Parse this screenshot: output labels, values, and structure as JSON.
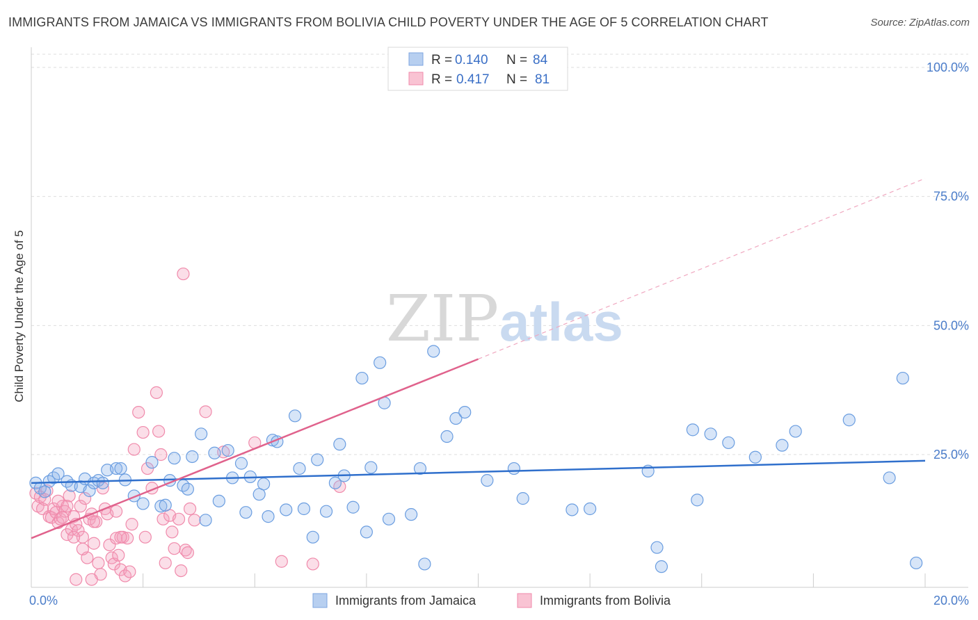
{
  "title": "IMMIGRANTS FROM JAMAICA VS IMMIGRANTS FROM BOLIVIA CHILD POVERTY UNDER THE AGE OF 5 CORRELATION CHART",
  "source": "Source: ZipAtlas.com",
  "watermark": {
    "zip": "ZIP",
    "atlas": "atlas"
  },
  "colors": {
    "jamaica": "#6a9de0",
    "jamaica_line": "#2f6fcc",
    "bolivia": "#f08aab",
    "bolivia_line": "#e0628c",
    "tick": "#4a7cc9"
  },
  "legend_top": {
    "rows": [
      {
        "r_label": "R =",
        "r_value": "0.140",
        "n_label": "N =",
        "n_value": "84"
      },
      {
        "r_label": "R =",
        "r_value": "0.417",
        "n_label": "N =",
        "n_value": "81"
      }
    ]
  },
  "chart_data": {
    "type": "scatter",
    "xlabel": "",
    "ylabel": "Child Poverty Under the Age of 5",
    "xlim": [
      0,
      20
    ],
    "ylim": [
      0,
      105
    ],
    "x_ticks": [
      {
        "value": 0,
        "label": "0.0%"
      },
      {
        "value": 20,
        "label": "20.0%"
      }
    ],
    "y_ticks": [
      {
        "value": 25,
        "label": "25.0%"
      },
      {
        "value": 50,
        "label": "50.0%"
      },
      {
        "value": 75,
        "label": "75.0%"
      },
      {
        "value": 100,
        "label": "100.0%"
      }
    ],
    "grid": true,
    "legend_position": "bottom",
    "series": [
      {
        "name": "Immigrants from Jamaica",
        "trend": {
          "x": [
            0,
            20
          ],
          "y": [
            19.5,
            23.8
          ],
          "dashed_extension": false
        },
        "points": [
          [
            0.1,
            19.5
          ],
          [
            0.2,
            18.5
          ],
          [
            0.3,
            17.8
          ],
          [
            0.4,
            19.8
          ],
          [
            0.5,
            20.5
          ],
          [
            0.6,
            21.3
          ],
          [
            0.8,
            19.8
          ],
          [
            0.9,
            19.0
          ],
          [
            1.1,
            18.8
          ],
          [
            1.2,
            20.3
          ],
          [
            1.3,
            18.0
          ],
          [
            1.4,
            19.5
          ],
          [
            1.5,
            20.0
          ],
          [
            1.6,
            19.5
          ],
          [
            1.7,
            22.0
          ],
          [
            1.9,
            22.3
          ],
          [
            2.0,
            22.3
          ],
          [
            2.1,
            20.1
          ],
          [
            2.3,
            17.0
          ],
          [
            2.5,
            15.5
          ],
          [
            2.7,
            23.5
          ],
          [
            2.9,
            15.0
          ],
          [
            3.0,
            15.2
          ],
          [
            3.1,
            20.0
          ],
          [
            3.2,
            24.3
          ],
          [
            3.4,
            19.0
          ],
          [
            3.5,
            18.3
          ],
          [
            3.6,
            24.6
          ],
          [
            3.8,
            29.0
          ],
          [
            3.9,
            12.3
          ],
          [
            4.1,
            25.3
          ],
          [
            4.2,
            16.0
          ],
          [
            4.4,
            25.8
          ],
          [
            4.5,
            20.5
          ],
          [
            4.7,
            23.3
          ],
          [
            4.8,
            13.8
          ],
          [
            4.9,
            20.7
          ],
          [
            5.1,
            17.3
          ],
          [
            5.2,
            19.3
          ],
          [
            5.3,
            13.0
          ],
          [
            5.4,
            27.8
          ],
          [
            5.5,
            27.5
          ],
          [
            5.7,
            14.3
          ],
          [
            5.9,
            32.5
          ],
          [
            6.0,
            22.3
          ],
          [
            6.1,
            14.5
          ],
          [
            6.3,
            9.0
          ],
          [
            6.4,
            24.0
          ],
          [
            6.6,
            14.0
          ],
          [
            6.8,
            19.5
          ],
          [
            6.9,
            27.0
          ],
          [
            7.0,
            20.9
          ],
          [
            7.2,
            14.8
          ],
          [
            7.4,
            39.8
          ],
          [
            7.5,
            10.0
          ],
          [
            7.6,
            22.5
          ],
          [
            7.8,
            42.8
          ],
          [
            7.9,
            35.0
          ],
          [
            8.0,
            12.5
          ],
          [
            8.5,
            13.4
          ],
          [
            8.7,
            22.3
          ],
          [
            8.8,
            3.8
          ],
          [
            9.0,
            45.0
          ],
          [
            9.3,
            28.5
          ],
          [
            9.5,
            32.0
          ],
          [
            9.7,
            33.2
          ],
          [
            10.2,
            20.0
          ],
          [
            10.8,
            22.3
          ],
          [
            11.0,
            16.5
          ],
          [
            12.1,
            14.3
          ],
          [
            12.5,
            14.5
          ],
          [
            13.8,
            21.8
          ],
          [
            14.0,
            7.0
          ],
          [
            14.1,
            3.3
          ],
          [
            14.8,
            29.8
          ],
          [
            14.9,
            16.2
          ],
          [
            15.2,
            29.0
          ],
          [
            15.6,
            27.3
          ],
          [
            16.2,
            24.5
          ],
          [
            16.8,
            26.8
          ],
          [
            17.1,
            29.5
          ],
          [
            18.3,
            31.7
          ],
          [
            19.2,
            20.5
          ],
          [
            19.5,
            39.8
          ],
          [
            19.8,
            4.0
          ]
        ]
      },
      {
        "name": "Immigrants from Bolivia",
        "trend": {
          "x": [
            0,
            10
          ],
          "y": [
            8.8,
            43.5
          ],
          "dashed_extension": true,
          "dashed_x": [
            10,
            20
          ],
          "dashed_y": [
            43.5,
            78.5
          ]
        },
        "points": [
          [
            0.1,
            17.5
          ],
          [
            0.15,
            15.0
          ],
          [
            0.2,
            16.8
          ],
          [
            0.25,
            14.5
          ],
          [
            0.3,
            16.3
          ],
          [
            0.35,
            18.0
          ],
          [
            0.4,
            13.0
          ],
          [
            0.45,
            12.8
          ],
          [
            0.5,
            14.5
          ],
          [
            0.55,
            13.8
          ],
          [
            0.6,
            11.8
          ],
          [
            0.65,
            12.5
          ],
          [
            0.7,
            15.0
          ],
          [
            0.75,
            14.0
          ],
          [
            0.8,
            9.5
          ],
          [
            0.85,
            17.0
          ],
          [
            0.9,
            10.5
          ],
          [
            0.95,
            13.0
          ],
          [
            1.0,
            11.5
          ],
          [
            1.05,
            10.3
          ],
          [
            1.1,
            15.0
          ],
          [
            1.15,
            9.0
          ],
          [
            1.2,
            16.5
          ],
          [
            1.25,
            5.0
          ],
          [
            1.3,
            12.5
          ],
          [
            1.35,
            13.5
          ],
          [
            1.4,
            7.8
          ],
          [
            1.45,
            12.0
          ],
          [
            1.5,
            4.0
          ],
          [
            1.55,
            1.8
          ],
          [
            1.6,
            18.5
          ],
          [
            1.65,
            14.5
          ],
          [
            1.7,
            13.5
          ],
          [
            1.75,
            7.5
          ],
          [
            1.8,
            5.0
          ],
          [
            1.85,
            3.8
          ],
          [
            1.9,
            8.8
          ],
          [
            1.95,
            5.5
          ],
          [
            2.0,
            2.7
          ],
          [
            2.05,
            9.0
          ],
          [
            2.1,
            1.5
          ],
          [
            2.15,
            8.8
          ],
          [
            2.2,
            2.3
          ],
          [
            2.3,
            26.0
          ],
          [
            2.4,
            33.2
          ],
          [
            2.5,
            29.3
          ],
          [
            2.55,
            9.0
          ],
          [
            2.6,
            22.3
          ],
          [
            2.7,
            18.5
          ],
          [
            2.8,
            37.0
          ],
          [
            2.85,
            29.5
          ],
          [
            2.9,
            25.0
          ],
          [
            2.95,
            12.5
          ],
          [
            3.0,
            4.0
          ],
          [
            3.1,
            13.2
          ],
          [
            3.15,
            10.0
          ],
          [
            3.2,
            6.8
          ],
          [
            3.3,
            12.5
          ],
          [
            3.35,
            2.5
          ],
          [
            3.4,
            60.0
          ],
          [
            3.45,
            6.5
          ],
          [
            3.5,
            6.0
          ],
          [
            3.55,
            14.5
          ],
          [
            3.65,
            12.3
          ],
          [
            3.9,
            33.3
          ],
          [
            4.3,
            25.5
          ],
          [
            5.0,
            27.3
          ],
          [
            5.6,
            4.3
          ],
          [
            6.3,
            3.8
          ],
          [
            6.9,
            18.8
          ],
          [
            1.0,
            0.8
          ],
          [
            1.35,
            0.8
          ],
          [
            0.7,
            12.8
          ],
          [
            0.95,
            9.0
          ],
          [
            1.15,
            6.7
          ],
          [
            2.25,
            11.5
          ],
          [
            1.9,
            14.0
          ],
          [
            0.6,
            16.0
          ],
          [
            0.8,
            15.0
          ],
          [
            1.4,
            12.0
          ],
          [
            2.0,
            9.0
          ]
        ]
      }
    ]
  }
}
